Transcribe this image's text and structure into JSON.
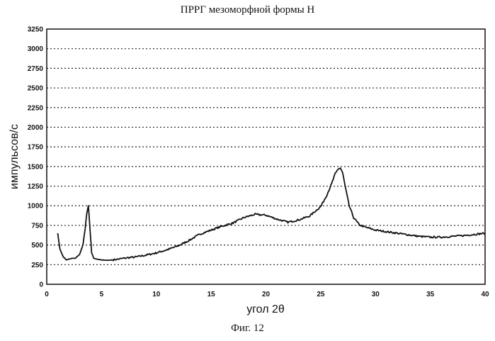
{
  "chart_data": {
    "type": "line",
    "title": "ПРРГ мезоморфной формы H",
    "xlabel": "угол 2θ",
    "ylabel": "импульсов/с",
    "caption": "Фиг. 12",
    "xlim": [
      0,
      40
    ],
    "ylim": [
      0,
      3250
    ],
    "xticks": [
      0,
      5,
      10,
      15,
      20,
      25,
      30,
      35,
      40
    ],
    "yticks": [
      0,
      250,
      500,
      750,
      1000,
      1250,
      1500,
      1750,
      2000,
      2250,
      2500,
      2750,
      3000,
      3250
    ],
    "grid": "horizontal dotted",
    "legend": "none",
    "series": [
      {
        "x": [
          1.0,
          1.2,
          1.5,
          1.8,
          2.0,
          2.3,
          2.6,
          3.0,
          3.3,
          3.5,
          3.65,
          3.8,
          3.95,
          4.1,
          4.3,
          4.6,
          5.0,
          5.5,
          6.0,
          6.5,
          7.0,
          7.5,
          8.0,
          9.0,
          10.0,
          11.0,
          12.0,
          13.0,
          14.0,
          15.0,
          16.0,
          17.0,
          18.0,
          19.0,
          20.0,
          21.0,
          22.0,
          23.0,
          24.0,
          25.0,
          25.5,
          26.0,
          26.3,
          26.6,
          26.8,
          27.0,
          27.3,
          27.6,
          28.0,
          28.5,
          29.0,
          30.0,
          31.0,
          32.0,
          33.0,
          34.0,
          35.0,
          36.0,
          37.0,
          38.0,
          39.0,
          40.0
        ],
        "y": [
          650,
          450,
          350,
          310,
          320,
          330,
          330,
          380,
          500,
          700,
          900,
          1000,
          700,
          400,
          330,
          320,
          310,
          305,
          310,
          320,
          330,
          340,
          345,
          370,
          400,
          440,
          490,
          560,
          640,
          690,
          740,
          780,
          850,
          890,
          880,
          830,
          790,
          820,
          870,
          990,
          1120,
          1280,
          1400,
          1470,
          1480,
          1420,
          1200,
          1000,
          850,
          760,
          730,
          690,
          670,
          650,
          630,
          610,
          600,
          600,
          610,
          620,
          635,
          650
        ]
      }
    ]
  }
}
